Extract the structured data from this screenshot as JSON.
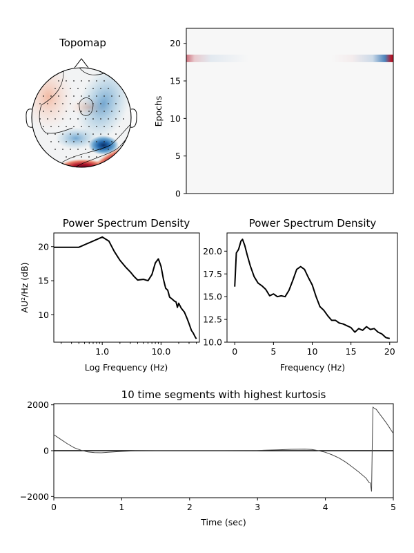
{
  "topomap": {
    "title": "Topomap",
    "colors": {
      "red": "#b2182b",
      "lightred": "#f4a582",
      "blue": "#2166ac",
      "lightblue": "#92c5de"
    }
  },
  "chart_data": [
    {
      "type": "heatmap",
      "ylabel": "Epochs",
      "ylim": [
        0,
        22
      ],
      "yticks": [
        "0",
        "5",
        "10",
        "15",
        "20"
      ],
      "rows": [
        {
          "epoch": 18,
          "x": [
            0.0,
            0.04,
            0.12,
            0.3,
            0.7,
            0.8,
            0.9,
            0.94,
            0.96,
            0.99
          ],
          "v": [
            0.6,
            0.2,
            -0.1,
            0,
            0,
            0.05,
            -0.2,
            -0.6,
            -0.8,
            1.0
          ]
        }
      ]
    },
    {
      "type": "line",
      "title": "Power Spectrum Density",
      "xlabel": "Log Frequency (Hz)",
      "ylabel": "AU²/Hz (dB)",
      "xscale": "log",
      "xlim": [
        0.15,
        45
      ],
      "ylim": [
        6,
        22
      ],
      "xticks": [
        "1.0",
        "10.0"
      ],
      "yticks": [
        "10",
        "15",
        "20"
      ],
      "x": [
        0.15,
        0.4,
        1.0,
        1.3,
        1.6,
        2.0,
        2.5,
        3.0,
        3.5,
        4.0,
        5.0,
        6.0,
        7.0,
        8.0,
        9.0,
        10.0,
        11.0,
        12.0,
        13.0,
        14.0,
        15.0,
        16.0,
        17.0,
        18.0,
        19.0,
        20.0,
        22.0,
        25.0,
        28.0,
        30.0,
        33.0,
        35.0,
        38.0,
        40.0
      ],
      "y": [
        19.9,
        19.9,
        21.4,
        20.8,
        19.3,
        18.0,
        17.0,
        16.3,
        15.6,
        15.1,
        15.2,
        15.0,
        15.9,
        17.6,
        18.2,
        17.1,
        15.2,
        13.9,
        13.6,
        12.6,
        12.4,
        12.2,
        12.0,
        11.9,
        11.1,
        11.7,
        11.0,
        10.4,
        9.4,
        8.7,
        7.7,
        7.4,
        6.8,
        6.5
      ]
    },
    {
      "type": "line",
      "title": "Power Spectrum Density",
      "xlabel": "Frequency (Hz)",
      "xlim": [
        -1,
        21
      ],
      "ylim": [
        10,
        22
      ],
      "xticks": [
        "0",
        "5",
        "10",
        "15",
        "20"
      ],
      "yticks": [
        "10.0",
        "12.5",
        "15.0",
        "17.5",
        "20.0"
      ],
      "x": [
        0.0,
        0.2,
        0.5,
        0.8,
        1.0,
        1.3,
        1.6,
        2.0,
        2.5,
        3.0,
        3.5,
        4.0,
        4.5,
        5.0,
        5.5,
        6.0,
        6.5,
        7.0,
        7.5,
        8.0,
        8.5,
        9.0,
        9.5,
        10.0,
        10.5,
        11.0,
        11.5,
        12.0,
        12.5,
        13.0,
        13.5,
        14.0,
        14.5,
        15.0,
        15.5,
        16.0,
        16.5,
        17.0,
        17.5,
        18.0,
        18.5,
        19.0,
        19.5,
        20.0
      ],
      "y": [
        16.1,
        19.8,
        20.2,
        21.1,
        21.3,
        20.6,
        19.6,
        18.4,
        17.2,
        16.5,
        16.2,
        15.8,
        15.1,
        15.3,
        15.0,
        15.1,
        15.0,
        15.7,
        16.8,
        18.0,
        18.3,
        18.0,
        17.1,
        16.3,
        15.0,
        13.9,
        13.5,
        12.9,
        12.4,
        12.4,
        12.1,
        12.0,
        11.8,
        11.6,
        11.1,
        11.5,
        11.3,
        11.7,
        11.4,
        11.5,
        11.1,
        10.9,
        10.5,
        10.4
      ]
    },
    {
      "type": "line",
      "title": "10 time segments with highest kurtosis",
      "xlabel": "Time (sec)",
      "xlim": [
        0,
        5
      ],
      "ylim": [
        -2050,
        2050
      ],
      "xticks": [
        "0",
        "1",
        "2",
        "3",
        "4",
        "5"
      ],
      "yticks": [
        "−2000",
        "0",
        "2000"
      ],
      "x": [
        0.0,
        0.1,
        0.2,
        0.3,
        0.4,
        0.5,
        0.6,
        0.7,
        0.8,
        1.0,
        1.2,
        1.5,
        2.0,
        2.5,
        3.0,
        3.3,
        3.5,
        3.7,
        3.8,
        3.9,
        4.0,
        4.1,
        4.2,
        4.3,
        4.4,
        4.5,
        4.6,
        4.64,
        4.66,
        4.67,
        4.68,
        4.69,
        4.7,
        4.72,
        4.75,
        4.8,
        4.9,
        5.0
      ],
      "y": [
        700,
        500,
        300,
        130,
        20,
        -50,
        -80,
        -90,
        -70,
        -30,
        -10,
        0,
        0,
        0,
        10,
        40,
        60,
        70,
        50,
        0,
        -70,
        -180,
        -320,
        -500,
        -720,
        -950,
        -1200,
        -1380,
        -1400,
        -1580,
        -1780,
        200,
        1900,
        1850,
        1800,
        1600,
        1200,
        750
      ]
    }
  ]
}
